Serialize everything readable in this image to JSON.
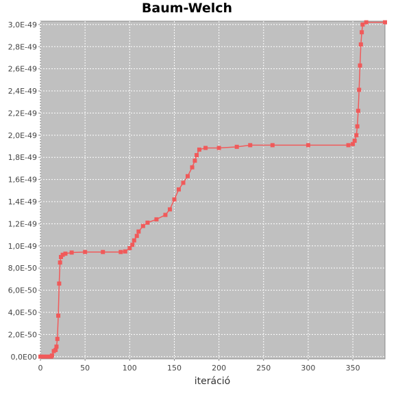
{
  "chart_data": {
    "type": "line",
    "title": "Baum-Welch",
    "x_label": "iteráció",
    "xlim": [
      0,
      386
    ],
    "ylim": [
      -2e-51,
      3.03e-49
    ],
    "xticks": [
      0,
      50,
      100,
      150,
      200,
      250,
      300,
      350
    ],
    "yticks": [
      {
        "value": 0,
        "label": "0,0E00"
      },
      {
        "value": 2e-50,
        "label": "2,0E-50"
      },
      {
        "value": 4e-50,
        "label": "4,0E-50"
      },
      {
        "value": 6e-50,
        "label": "6,0E-50"
      },
      {
        "value": 8e-50,
        "label": "8,0E-50"
      },
      {
        "value": 1e-49,
        "label": "1,0E-49"
      },
      {
        "value": 1.2e-49,
        "label": "1,2E-49"
      },
      {
        "value": 1.4e-49,
        "label": "1,4E-49"
      },
      {
        "value": 1.6e-49,
        "label": "1,6E-49"
      },
      {
        "value": 1.8e-49,
        "label": "1,8E-49"
      },
      {
        "value": 2e-49,
        "label": "2,0E-49"
      },
      {
        "value": 2.2e-49,
        "label": "2,2E-49"
      },
      {
        "value": 2.4e-49,
        "label": "2,4E-49"
      },
      {
        "value": 2.6e-49,
        "label": "2,6E-49"
      },
      {
        "value": 2.8e-49,
        "label": "2,8E-49"
      },
      {
        "value": 3e-49,
        "label": "3,0E-49"
      }
    ],
    "grid": true,
    "background": "#c0c0c0",
    "series": [
      {
        "color": "#f05a5a",
        "x": [
          0,
          4,
          8,
          12,
          13,
          15,
          17,
          18,
          19,
          20,
          21,
          22,
          23,
          25,
          28,
          35,
          50,
          70,
          90,
          95,
          100,
          103,
          105,
          108,
          110,
          115,
          120,
          130,
          140,
          145,
          150,
          155,
          160,
          165,
          170,
          173,
          175,
          178,
          185,
          200,
          220,
          235,
          260,
          300,
          345,
          350,
          352,
          354,
          355,
          356,
          357,
          358,
          359,
          360,
          361,
          365,
          386
        ],
        "values": [
          0,
          0,
          0,
          0,
          1e-51,
          5e-51,
          6e-51,
          9e-51,
          1.6e-50,
          3.7e-50,
          6.6e-50,
          8.5e-50,
          9e-50,
          9.2e-50,
          9.3e-50,
          9.4e-50,
          9.45e-50,
          9.45e-50,
          9.45e-50,
          9.5e-50,
          9.8e-50,
          1.01e-49,
          1.05e-49,
          1.09e-49,
          1.13e-49,
          1.18e-49,
          1.21e-49,
          1.24e-49,
          1.28e-49,
          1.33e-49,
          1.42e-49,
          1.51e-49,
          1.57e-49,
          1.63e-49,
          1.71e-49,
          1.77e-49,
          1.82e-49,
          1.87e-49,
          1.885e-49,
          1.885e-49,
          1.895e-49,
          1.91e-49,
          1.91e-49,
          1.91e-49,
          1.91e-49,
          1.92e-49,
          1.95e-49,
          2e-49,
          2.08e-49,
          2.22e-49,
          2.41e-49,
          2.63e-49,
          2.82e-49,
          2.93e-49,
          3e-49,
          3.02e-49,
          3.02e-49
        ]
      }
    ]
  }
}
